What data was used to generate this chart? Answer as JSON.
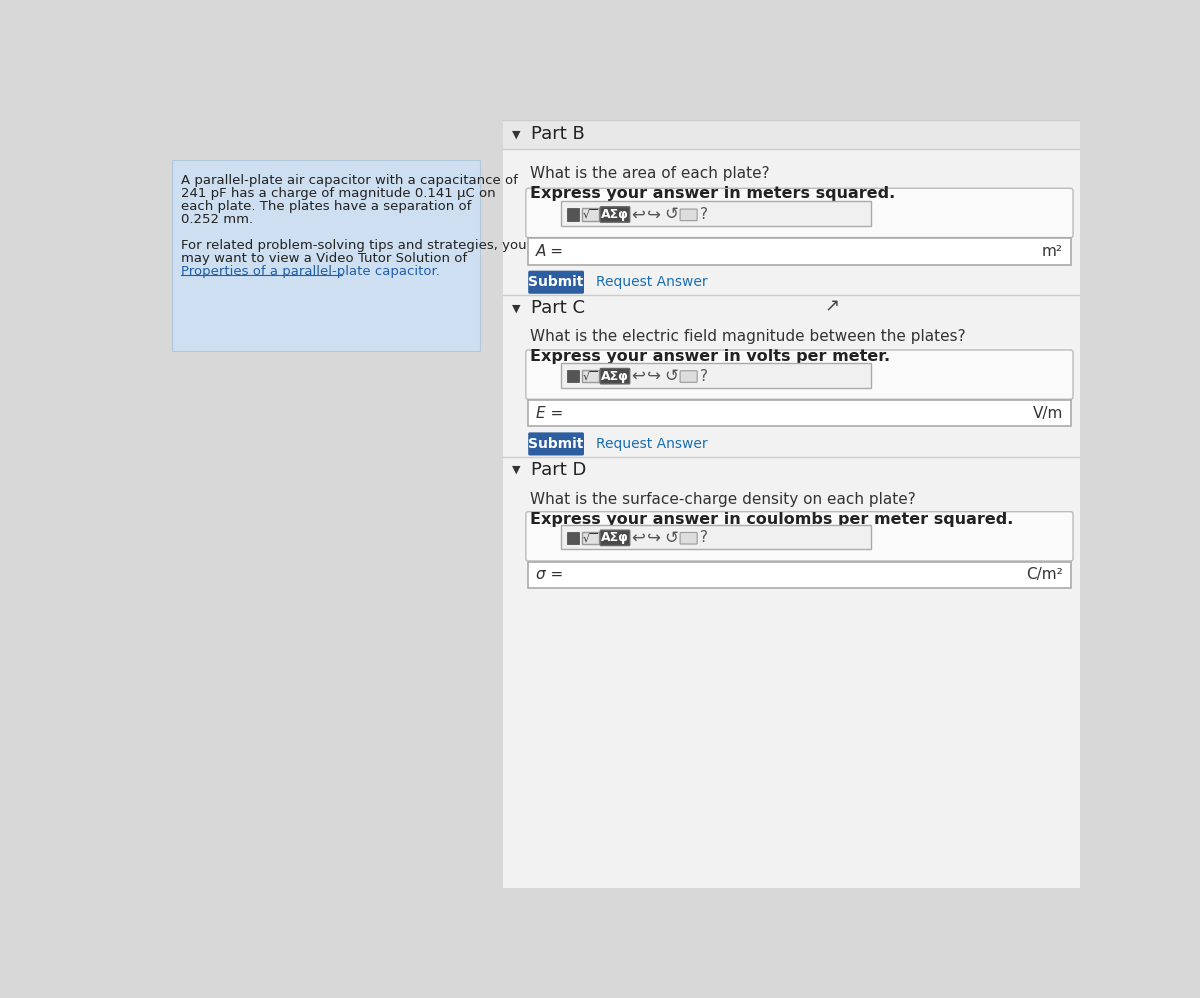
{
  "bg_color": "#d8d8d8",
  "right_panel_bg": "#f5f5f5",
  "left_panel_bg": "#cddff0",
  "part_b_label": "Part B",
  "part_b_q1": "What is the area of each plate?",
  "part_b_q2": "Express your answer in meters squared.",
  "part_b_var": "A =",
  "part_b_unit": "m²",
  "part_c_label": "Part C",
  "part_c_q1": "What is the electric field magnitude between the plates?",
  "part_c_q2": "Express your answer in volts per meter.",
  "part_c_var": "E =",
  "part_c_unit": "V/m",
  "part_d_label": "Part D",
  "part_d_q1": "What is the surface-charge density on each plate?",
  "part_d_q2": "Express your answer in coulombs per meter squared.",
  "part_d_var": "σ =",
  "part_d_unit": "C/m²",
  "submit_bg": "#2d5fa0",
  "submit_text_color": "#ffffff",
  "request_answer_color": "#1a6faf",
  "input_border": "#aaaaaa",
  "link_color": "#2060aa",
  "left_text_lines": [
    "A parallel-plate air capacitor with a capacitance of",
    "241 pF has a charge of magnitude 0.141 μC on",
    "each plate. The plates have a separation of",
    "0.252 mm.",
    "",
    "For related problem-solving tips and strategies, you",
    "may want to view a Video Tutor Solution of",
    "Properties of a parallel-plate capacitor."
  ]
}
